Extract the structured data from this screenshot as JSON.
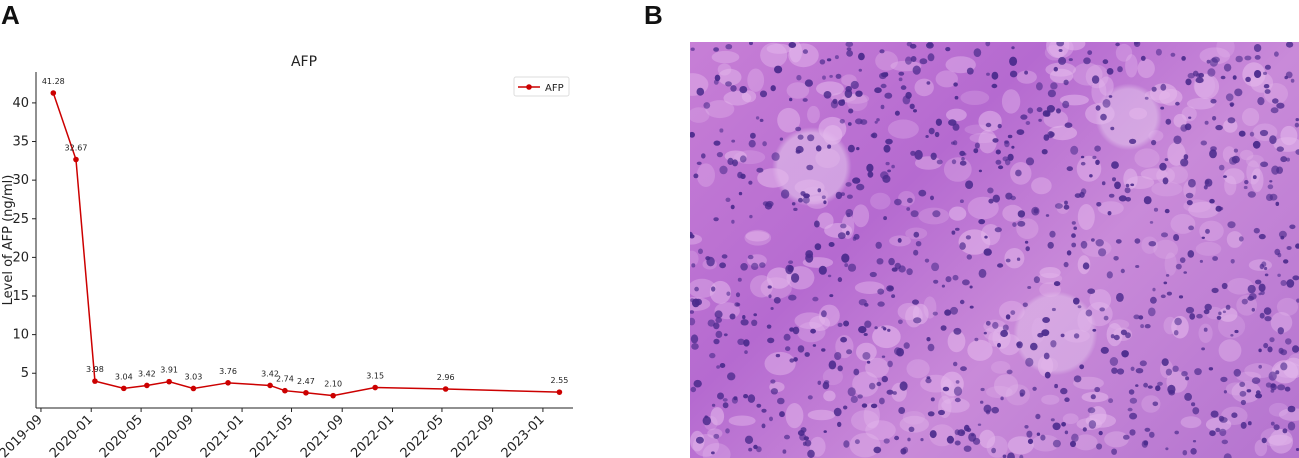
{
  "panels": {
    "a_label": "A",
    "b_label": "B"
  },
  "chart_data": {
    "type": "line",
    "title": "AFP",
    "xlabel": "",
    "ylabel": "Level of AFP (ng/ml)",
    "ylim": [
      0.5,
      44
    ],
    "xlim": [
      "2019-08-20",
      "2023-03-15"
    ],
    "yticks": [
      5,
      10,
      15,
      20,
      25,
      30,
      35,
      40
    ],
    "xticks": [
      "2019-09",
      "2020-01",
      "2020-05",
      "2020-09",
      "2021-01",
      "2021-05",
      "2021-09",
      "2022-01",
      "2022-05",
      "2022-09",
      "2023-01"
    ],
    "grid": false,
    "legend_position": "top-right",
    "color": "#cc0000",
    "series": [
      {
        "name": "AFP",
        "points": [
          {
            "x": "2019-10-01",
            "y": 41.28,
            "label": "41.28"
          },
          {
            "x": "2019-11-25",
            "y": 32.67,
            "label": "32.67"
          },
          {
            "x": "2020-01-10",
            "y": 3.98,
            "label": "3.98"
          },
          {
            "x": "2020-03-20",
            "y": 3.04,
            "label": "3.04"
          },
          {
            "x": "2020-05-15",
            "y": 3.42,
            "label": "3.42"
          },
          {
            "x": "2020-07-08",
            "y": 3.91,
            "label": "3.91"
          },
          {
            "x": "2020-09-05",
            "y": 3.03,
            "label": "3.03"
          },
          {
            "x": "2020-11-28",
            "y": 3.76,
            "label": "3.76"
          },
          {
            "x": "2021-03-10",
            "y": 3.42,
            "label": "3.42"
          },
          {
            "x": "2021-04-15",
            "y": 2.74,
            "label": "2.74"
          },
          {
            "x": "2021-06-05",
            "y": 2.47,
            "label": "2.47"
          },
          {
            "x": "2021-08-10",
            "y": 2.1,
            "label": "2.10"
          },
          {
            "x": "2021-11-20",
            "y": 3.15,
            "label": "3.15"
          },
          {
            "x": "2022-05-10",
            "y": 2.96,
            "label": "2.96"
          },
          {
            "x": "2023-02-10",
            "y": 2.55,
            "label": "2.55"
          }
        ]
      }
    ]
  },
  "histology": {
    "base_color": "#c077d4",
    "nucleus_color": "#4a2a8c",
    "cytoplasm_color": "#e4b8ec"
  }
}
